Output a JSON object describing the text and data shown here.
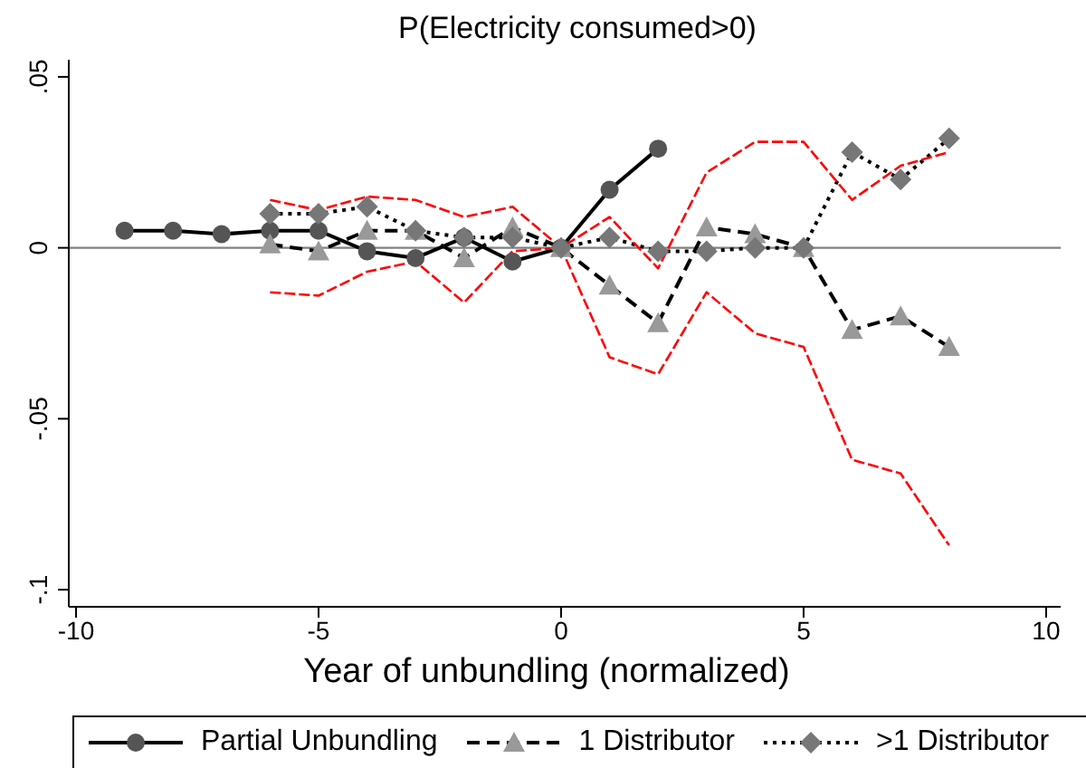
{
  "chart_data": {
    "type": "line",
    "title": "P(Electricity consumed>0)",
    "xlabel": "Year of unbundling (normalized)",
    "xlim": [
      -10.15,
      10.3
    ],
    "xticks": [
      -10,
      -5,
      0,
      5,
      10
    ],
    "ylim": [
      -0.105,
      0.055
    ],
    "yticks": [
      {
        "value": 0.05,
        "label": ".05"
      },
      {
        "value": 0,
        "label": "0"
      },
      {
        "value": -0.05,
        "label": "-.05"
      },
      {
        "value": -0.1,
        "label": "-.1"
      }
    ],
    "grid": false,
    "legend": "bottom",
    "ref_lines": [
      {
        "axis": "y",
        "value": 0,
        "color": "#808080"
      }
    ],
    "series": [
      {
        "name": "Partial Unbundling",
        "color": "#555555",
        "marker": "circle",
        "line_style": "solid",
        "x": [
          -9,
          -8,
          -7,
          -6,
          -5,
          -4,
          -3,
          -2,
          -1,
          0,
          1,
          2
        ],
        "values": [
          0.005,
          0.005,
          0.004,
          0.005,
          0.005,
          -0.001,
          -0.003,
          0.003,
          -0.004,
          0,
          0.017,
          0.029
        ]
      },
      {
        "name": "1 Distributor",
        "color": "#999999",
        "marker": "triangle",
        "line_style": "dashed",
        "x": [
          -6,
          -5,
          -4,
          -3,
          -2,
          -1,
          0,
          1,
          2,
          3,
          4,
          5,
          6,
          7,
          8
        ],
        "values": [
          0.001,
          -0.001,
          0.005,
          0.005,
          -0.003,
          0.006,
          0,
          -0.011,
          -0.022,
          0.006,
          0.004,
          0,
          -0.024,
          -0.02,
          -0.029
        ]
      },
      {
        "name": ">1 Distributor",
        "color": "#777777",
        "marker": "diamond",
        "line_style": "dotted",
        "x": [
          -6,
          -5,
          -4,
          -3,
          -2,
          -1,
          0,
          1,
          2,
          3,
          4,
          5,
          6,
          7,
          8
        ],
        "values": [
          0.01,
          0.01,
          0.012,
          0.005,
          0.003,
          0.003,
          0,
          0.003,
          -0.001,
          -0.001,
          0,
          0,
          0.028,
          0.02,
          0.032
        ]
      },
      {
        "color": "#ff0000",
        "marker": "none",
        "line_style": "dashed",
        "x": [
          -6,
          -5,
          -4,
          -3,
          -2,
          -1,
          0,
          1,
          2,
          3,
          4,
          5,
          6,
          7,
          8
        ],
        "values": [
          0.014,
          0.011,
          0.015,
          0.014,
          0.009,
          0.012,
          0,
          0.009,
          -0.006,
          0.022,
          0.031,
          0.031,
          0.014,
          0.024,
          0.028
        ]
      },
      {
        "color": "#ff0000",
        "marker": "none",
        "line_style": "dashed",
        "x": [
          -6,
          -5,
          -4,
          -3,
          -2,
          -1,
          0,
          1,
          2,
          3,
          4,
          5,
          6,
          7,
          8
        ],
        "values": [
          -0.013,
          -0.014,
          -0.007,
          -0.004,
          -0.016,
          -0.001,
          0,
          -0.032,
          -0.037,
          -0.013,
          -0.025,
          -0.029,
          -0.062,
          -0.066,
          -0.087
        ]
      }
    ]
  }
}
